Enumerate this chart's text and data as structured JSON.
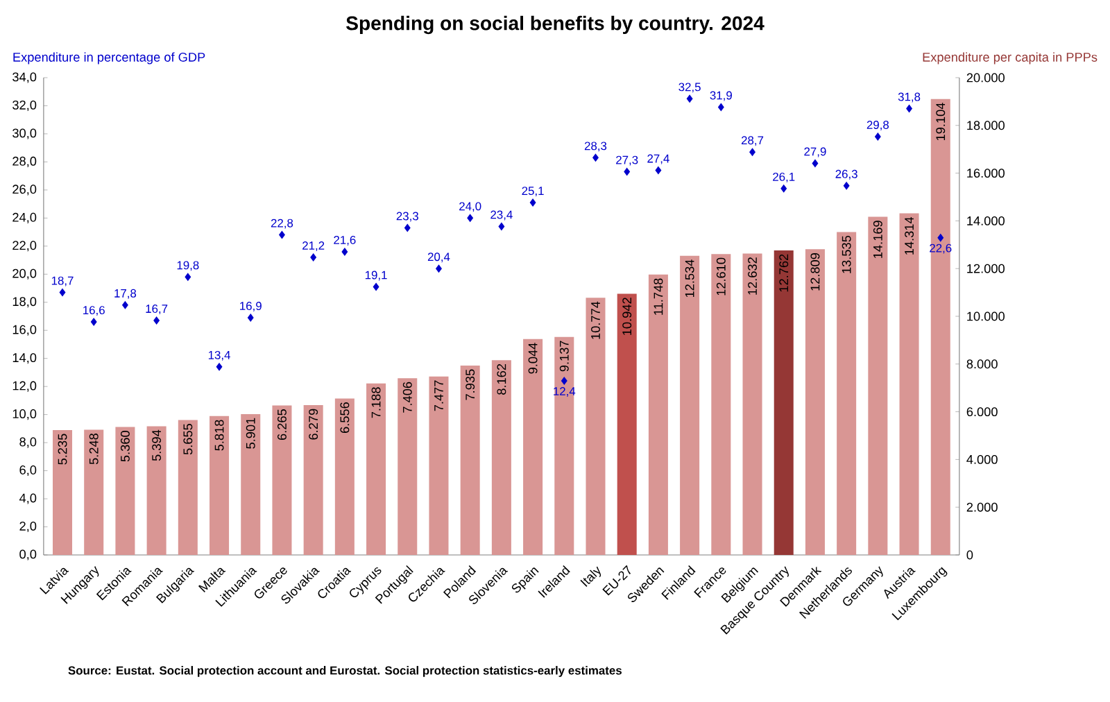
{
  "chart_data": {
    "type": "bar",
    "title": "Spending on social benefits by country. 2024",
    "ylabel": "Expenditure in percentage of GDP",
    "y2label": "Expenditure per capita in PPPs",
    "categories": [
      "Latvia",
      "Hungary",
      "Estonia",
      "Romania",
      "Bulgaria",
      "Malta",
      "Lithuania",
      "Greece",
      "Slovakia",
      "Croatia",
      "Cyprus",
      "Portugal",
      "Czechia",
      "Poland",
      "Slovenia",
      "Spain",
      "Ireland",
      "Italy",
      "EU-27",
      "Sweden",
      "Finland",
      "France",
      "Belgium",
      "Basque Country",
      "Denmark",
      "Netherlands",
      "Germany",
      "Austria",
      "Luxembourg"
    ],
    "series": [
      {
        "axis": "y2",
        "color": "#d99694",
        "colors": [
          "#d99694",
          "#d99694",
          "#d99694",
          "#d99694",
          "#d99694",
          "#d99694",
          "#d99694",
          "#d99694",
          "#d99694",
          "#d99694",
          "#d99694",
          "#d99694",
          "#d99694",
          "#d99694",
          "#d99694",
          "#d99694",
          "#d99694",
          "#d99694",
          "#c0504d",
          "#d99694",
          "#d99694",
          "#d99694",
          "#d99694",
          "#953735",
          "#d99694",
          "#d99694",
          "#d99694",
          "#d99694",
          "#d99694"
        ],
        "values": [
          5235,
          5248,
          5360,
          5394,
          5655,
          5818,
          5901,
          6265,
          6279,
          6556,
          7188,
          7406,
          7477,
          7935,
          8162,
          9044,
          9137,
          10774,
          10942,
          11748,
          12534,
          12610,
          12632,
          12762,
          12809,
          13535,
          14169,
          14314,
          19104
        ],
        "value_labels": [
          "5.235",
          "5.248",
          "5.360",
          "5.394",
          "5.655",
          "5.818",
          "5.901",
          "6.265",
          "6.279",
          "6.556",
          "7.188",
          "7.406",
          "7.477",
          "7.935",
          "8.162",
          "9.044",
          "9.137",
          "10.774",
          "10.942",
          "11.748",
          "12.534",
          "12.610",
          "12.632",
          "12.762",
          "12.809",
          "13.535",
          "14.169",
          "14.314",
          "19.104"
        ]
      },
      {
        "type": "scatter",
        "axis": "y",
        "color": "#0000cc",
        "marker": "diamond",
        "values": [
          18.7,
          16.6,
          17.8,
          16.7,
          19.8,
          13.4,
          16.9,
          22.8,
          21.2,
          21.6,
          19.1,
          23.3,
          20.4,
          24.0,
          23.4,
          25.1,
          12.4,
          28.3,
          27.3,
          27.4,
          32.5,
          31.9,
          28.7,
          26.1,
          27.9,
          26.3,
          29.8,
          31.8,
          22.6
        ],
        "value_labels": [
          "18,7",
          "16,6",
          "17,8",
          "16,7",
          "19,8",
          "13,4",
          "16,9",
          "22,8",
          "21,2",
          "21,6",
          "19,1",
          "23,3",
          "20,4",
          "24,0",
          "23,4",
          "25,1",
          "12,4",
          "28,3",
          "27,3",
          "27,4",
          "32,5",
          "31,9",
          "28,7",
          "26,1",
          "27,9",
          "26,3",
          "29,8",
          "31,8",
          "22,6"
        ]
      }
    ],
    "ylim": [
      0,
      34
    ],
    "yticks": [
      {
        "value": 0,
        "label": "0,0"
      },
      {
        "value": 2,
        "label": "2,0"
      },
      {
        "value": 4,
        "label": "4,0"
      },
      {
        "value": 6,
        "label": "6,0"
      },
      {
        "value": 8,
        "label": "8,0"
      },
      {
        "value": 10,
        "label": "10,0"
      },
      {
        "value": 12,
        "label": "12,0"
      },
      {
        "value": 14,
        "label": "14,0"
      },
      {
        "value": 16,
        "label": "16,0"
      },
      {
        "value": 18,
        "label": "18,0"
      },
      {
        "value": 20,
        "label": "20,0"
      },
      {
        "value": 22,
        "label": "22,0"
      },
      {
        "value": 24,
        "label": "24,0"
      },
      {
        "value": 26,
        "label": "26,0"
      },
      {
        "value": 28,
        "label": "28,0"
      },
      {
        "value": 30,
        "label": "30,0"
      },
      {
        "value": 32,
        "label": "32,0"
      },
      {
        "value": 34,
        "label": "34,0"
      }
    ],
    "y2lim": [
      0,
      20000
    ],
    "y2ticks": [
      {
        "value": 0,
        "label": "0"
      },
      {
        "value": 2000,
        "label": "2.000"
      },
      {
        "value": 4000,
        "label": "4.000"
      },
      {
        "value": 6000,
        "label": "6.000"
      },
      {
        "value": 8000,
        "label": "8.000"
      },
      {
        "value": 10000,
        "label": "10.000"
      },
      {
        "value": 12000,
        "label": "12.000"
      },
      {
        "value": 14000,
        "label": "14.000"
      },
      {
        "value": 16000,
        "label": "16.000"
      },
      {
        "value": 18000,
        "label": "18.000"
      },
      {
        "value": 20000,
        "label": "20.000"
      }
    ],
    "annotations": [
      "Source: Eustat. Social protection account and Eurostat. Social protection statistics-early estimates"
    ]
  }
}
